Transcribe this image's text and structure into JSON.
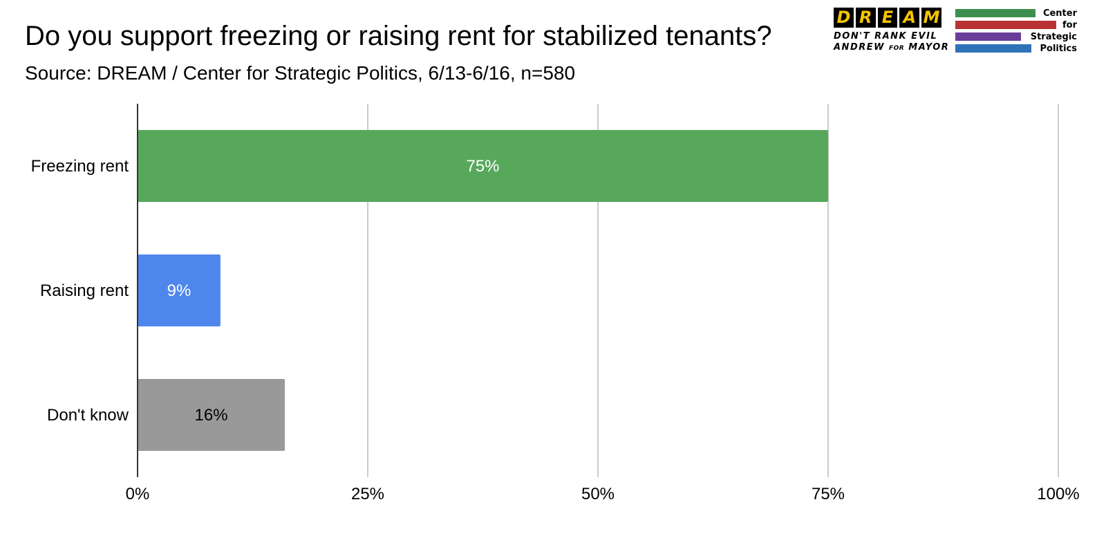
{
  "chart_data": {
    "type": "bar",
    "orientation": "horizontal",
    "title": "Do you support freezing or raising rent for stabilized tenants?",
    "subtitle": "Source:  DREAM / Center for Strategic Politics, 6/13-6/16, n=580",
    "categories": [
      "Freezing rent",
      "Raising rent",
      "Don't know"
    ],
    "values": [
      75,
      9,
      16
    ],
    "data_labels": [
      "75%",
      "9%",
      "16%"
    ],
    "bar_colors": [
      "#57a85b",
      "#4f86ec",
      "#999999"
    ],
    "label_colors": [
      "#ffffff",
      "#ffffff",
      "#000000"
    ],
    "xlim": [
      0,
      100
    ],
    "xticks": [
      0,
      25,
      50,
      75,
      100
    ],
    "xtick_labels": [
      "0%",
      "25%",
      "50%",
      "75%",
      "100%"
    ],
    "grid": true,
    "legend": "none"
  },
  "logos": {
    "dream": {
      "letters": [
        "D",
        "R",
        "E",
        "A",
        "M"
      ],
      "line1": "DON'T RANK EVIL",
      "line2_a": "ANDREW ",
      "line2_b": "FOR",
      "line2_c": " MAYOR"
    },
    "csp": {
      "words": [
        "Center",
        "for",
        "Strategic",
        "Politics"
      ],
      "stripe_colors": [
        "#3e8f4f",
        "#b93234",
        "#6a3d9a",
        "#3072b8"
      ]
    }
  }
}
